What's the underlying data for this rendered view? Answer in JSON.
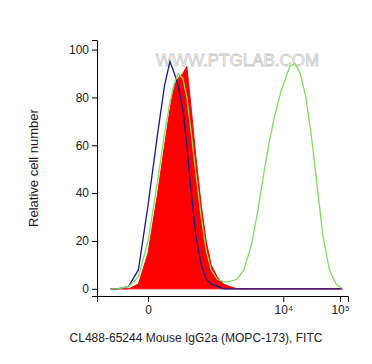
{
  "chart_data": {
    "type": "line",
    "x_label": "CL488-65244 Mouse IgG2a (MOPC-173), FITC",
    "y_label": "Relative cell number",
    "annotations": [
      "WWW.PTGLAB.COM"
    ],
    "log": "x",
    "xlim": [
      -290,
      138000
    ],
    "xticks": [
      0,
      {
        "value": 10000,
        "label": "10⁴"
      },
      {
        "value": 100000,
        "label": "10⁵"
      }
    ],
    "ylim": [
      -3,
      104
    ],
    "yticks": [
      0,
      20,
      40,
      60,
      80,
      100
    ],
    "x": [
      -150,
      -100,
      -50,
      -20,
      0,
      20,
      40,
      60,
      80,
      100,
      130,
      160,
      200,
      250,
      320,
      400,
      500,
      650,
      850,
      1100,
      1500,
      2000,
      2700,
      3500,
      4500,
      5500,
      7000,
      9000,
      11000,
      13000,
      16000,
      20000,
      25000,
      32000,
      40000,
      50000,
      65000,
      85000,
      110000
    ],
    "series": [
      {
        "type": "area",
        "color": "#ff0000",
        "values": [
          0,
          0,
          0,
          2,
          15,
          40,
          60,
          75,
          85,
          88,
          90,
          93,
          75,
          55,
          35,
          20,
          10,
          5,
          2,
          1,
          0,
          0,
          0,
          0,
          0,
          0,
          0,
          0,
          0,
          0,
          0,
          0,
          0,
          0,
          0,
          0,
          0,
          0,
          0
        ]
      },
      {
        "type": "line",
        "color": "#1a1a8c",
        "values": [
          0,
          0,
          1,
          8,
          35,
          65,
          85,
          95,
          90,
          85,
          75,
          60,
          40,
          22,
          10,
          4,
          2,
          1,
          0,
          0,
          0,
          0,
          0,
          0,
          0,
          0,
          0,
          0,
          0,
          0,
          0,
          0,
          0,
          0,
          0,
          0,
          0,
          0,
          0
        ]
      },
      {
        "type": "line",
        "color": "#7ee05a",
        "values": [
          0,
          0,
          1,
          5,
          20,
          45,
          65,
          78,
          86,
          90,
          88,
          80,
          65,
          48,
          30,
          16,
          8,
          4,
          3,
          3,
          4,
          8,
          18,
          32,
          48,
          60,
          72,
          82,
          88,
          93,
          94,
          90,
          80,
          62,
          42,
          22,
          8,
          2,
          0
        ]
      }
    ]
  }
}
